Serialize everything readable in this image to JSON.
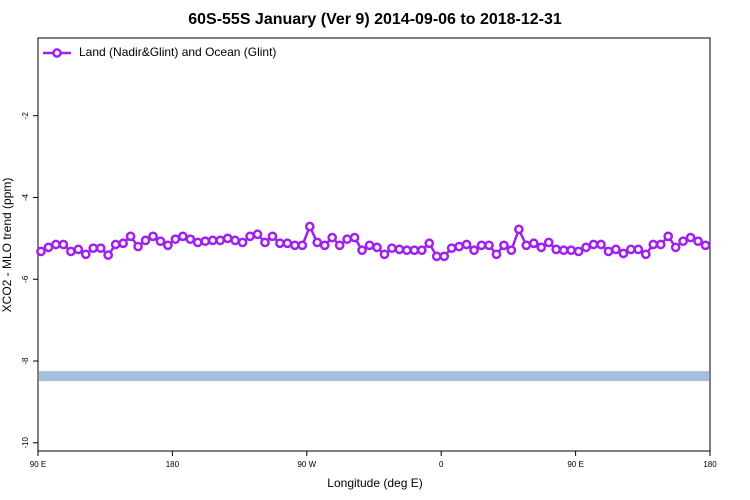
{
  "chart_data": {
    "type": "line",
    "title": "60S-55S January (Ver 9)   2014-09-06 to 2018-12-31",
    "x_label": "Longitude (deg E)",
    "y_label": "XCO2 - MLO trend (ppm)",
    "xlim": [
      90,
      540
    ],
    "xticks": [
      {
        "value": 90,
        "label": "90 E"
      },
      180,
      {
        "value": 270,
        "label": "90 W"
      },
      {
        "value": 360,
        "label": "0"
      },
      {
        "value": 450,
        "label": "90 E"
      },
      {
        "value": 540,
        "label": "180"
      }
    ],
    "ylim": [
      -10.2,
      -0.1
    ],
    "yticks": [
      -2,
      -4,
      -6,
      -8,
      -10
    ],
    "legend": "top-left",
    "reference_line": {
      "value": -8.37,
      "color": "#a6bddb"
    },
    "x": [
      92,
      97,
      102,
      107,
      112,
      117,
      122,
      127,
      132,
      137,
      142,
      147,
      152,
      157,
      162,
      167,
      172,
      177,
      182,
      187,
      192,
      197,
      202,
      207,
      212,
      217,
      222,
      227,
      232,
      237,
      242,
      247,
      252,
      257,
      262,
      267,
      272,
      277,
      282,
      287,
      292,
      297,
      302,
      307,
      312,
      317,
      322,
      327,
      332,
      337,
      342,
      347,
      352,
      357,
      362,
      367,
      372,
      377,
      382,
      387,
      392,
      397,
      402,
      407,
      412,
      417,
      422,
      427,
      432,
      437,
      442,
      447,
      452,
      457,
      462,
      467,
      472,
      477,
      482,
      487,
      492,
      497,
      502,
      507,
      512,
      517,
      522,
      527,
      532,
      537
    ],
    "series": [
      {
        "name": "Land (Nadir&Glint) and Ocean (Glint)",
        "color": "#a020f0",
        "values": [
          -5.32,
          -5.22,
          -5.15,
          -5.15,
          -5.32,
          -5.27,
          -5.39,
          -5.24,
          -5.24,
          -5.41,
          -5.15,
          -5.12,
          -4.95,
          -5.2,
          -5.05,
          -4.95,
          -5.07,
          -5.17,
          -5.02,
          -4.95,
          -5.02,
          -5.1,
          -5.07,
          -5.05,
          -5.05,
          -5.0,
          -5.05,
          -5.1,
          -4.95,
          -4.9,
          -5.1,
          -4.95,
          -5.12,
          -5.12,
          -5.17,
          -5.17,
          -4.71,
          -5.1,
          -5.17,
          -4.98,
          -5.17,
          -5.02,
          -4.98,
          -5.29,
          -5.17,
          -5.22,
          -5.39,
          -5.24,
          -5.27,
          -5.29,
          -5.29,
          -5.29,
          -5.12,
          -5.44,
          -5.44,
          -5.24,
          -5.2,
          -5.15,
          -5.29,
          -5.17,
          -5.17,
          -5.39,
          -5.17,
          -5.29,
          -4.78,
          -5.17,
          -5.12,
          -5.22,
          -5.1,
          -5.27,
          -5.29,
          -5.29,
          -5.32,
          -5.22,
          -5.15,
          -5.15,
          -5.32,
          -5.27,
          -5.37,
          -5.27,
          -5.27,
          -5.39,
          -5.15,
          -5.15,
          -4.95,
          -5.22,
          -5.07,
          -4.98,
          -5.07,
          -5.17
        ]
      }
    ]
  }
}
